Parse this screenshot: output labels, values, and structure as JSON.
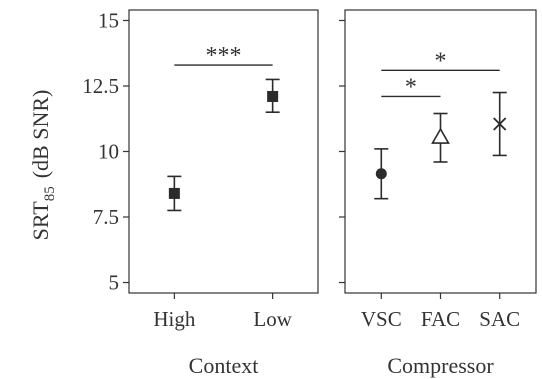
{
  "colors": {
    "ink": "#2b2b2b",
    "panel_border": "#333333",
    "background": "#ffffff"
  },
  "y_axis": {
    "label_main": "SRT",
    "label_sub": "85",
    "label_rest": "(dB SNR)",
    "ylim": [
      4.6,
      15.4
    ],
    "ticks": [
      5,
      7.5,
      10,
      12.5,
      15
    ],
    "tick_labels": [
      "5",
      "7.5",
      "10",
      "12.5",
      "15"
    ]
  },
  "chart_data": [
    {
      "type": "scatter",
      "panel": "Context",
      "xlabel": "Context",
      "ylabel": "SRT85 (dB SNR)",
      "categories": [
        "High",
        "Low"
      ],
      "markers": [
        "square",
        "square"
      ],
      "values": [
        8.4,
        12.1
      ],
      "error_low": [
        7.75,
        11.5
      ],
      "error_high": [
        9.05,
        12.75
      ],
      "ylim": [
        4.6,
        15.4
      ],
      "grid": false,
      "significance": [
        {
          "from": 0,
          "to": 1,
          "label": "***",
          "y": 13.3
        }
      ]
    },
    {
      "type": "scatter",
      "panel": "Compressor",
      "xlabel": "Compressor",
      "ylabel": "SRT85 (dB SNR)",
      "categories": [
        "VSC",
        "FAC",
        "SAC"
      ],
      "markers": [
        "circle",
        "triangle",
        "cross"
      ],
      "values": [
        9.15,
        10.55,
        11.05
      ],
      "error_low": [
        8.2,
        9.6,
        9.85
      ],
      "error_high": [
        10.1,
        11.45,
        12.25
      ],
      "ylim": [
        4.6,
        15.4
      ],
      "grid": false,
      "significance": [
        {
          "from": 0,
          "to": 2,
          "label": "*",
          "y": 13.1
        },
        {
          "from": 0,
          "to": 1,
          "label": "*",
          "y": 12.1
        }
      ]
    }
  ]
}
